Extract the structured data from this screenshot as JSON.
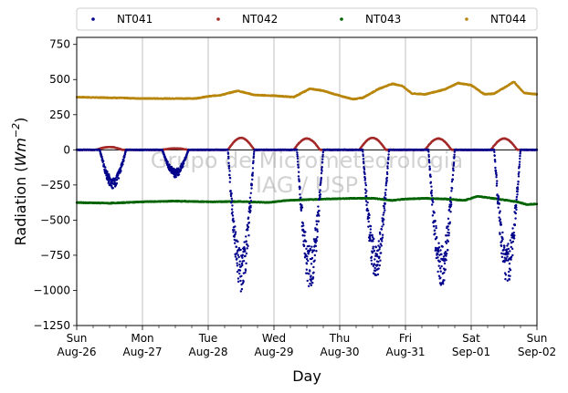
{
  "chart_data": {
    "type": "scatter",
    "title": "",
    "xlabel": "Day",
    "ylabel": "Radiation (Wm⁻²)",
    "ylabel_main": "Radiation (",
    "ylabel_unit": "Wm",
    "ylabel_exp": "−2",
    "ylabel_close": ")",
    "ylim": [
      -1250,
      800
    ],
    "xlim": [
      0,
      7
    ],
    "grid": "vertical",
    "legend_placement": "top",
    "y_ticks": [
      {
        "value": 750,
        "label": "750"
      },
      {
        "value": 500,
        "label": "500"
      },
      {
        "value": 250,
        "label": "250"
      },
      {
        "value": 0,
        "label": "0"
      },
      {
        "value": -250,
        "label": "−250"
      },
      {
        "value": -500,
        "label": "−500"
      },
      {
        "value": -750,
        "label": "−750"
      },
      {
        "value": -1000,
        "label": "−1000"
      },
      {
        "value": -1250,
        "label": "−1250"
      }
    ],
    "x_ticks": [
      {
        "value": 0,
        "line1": "Sun",
        "line2": "Aug-26"
      },
      {
        "value": 1,
        "line1": "Mon",
        "line2": "Aug-27"
      },
      {
        "value": 2,
        "line1": "Tue",
        "line2": "Aug-28"
      },
      {
        "value": 3,
        "line1": "Wed",
        "line2": "Aug-29"
      },
      {
        "value": 4,
        "line1": "Thu",
        "line2": "Aug-30"
      },
      {
        "value": 5,
        "line1": "Fri",
        "line2": "Aug-31"
      },
      {
        "value": 6,
        "line1": "Sat",
        "line2": "Sep-01"
      },
      {
        "value": 7,
        "line1": "Sun",
        "line2": "Sep-02"
      }
    ],
    "watermark": [
      "Grupo de Micrometeorologia",
      "IAG / USP"
    ],
    "series": [
      {
        "name": "NT041",
        "color": "#00008b",
        "daily_peak": [
          -240,
          -170,
          -880,
          -860,
          -800,
          -850,
          -835
        ],
        "daily_peak_day_fraction": [
          0.55,
          0.5,
          0.5,
          0.55,
          0.55,
          0.55,
          0.55
        ]
      },
      {
        "name": "NT042",
        "color": "#a52a2a",
        "daily_peak": [
          20,
          10,
          85,
          80,
          85,
          80,
          80
        ],
        "baseline": 0
      },
      {
        "name": "NT043",
        "color": "#006400",
        "points": [
          [
            0,
            -375
          ],
          [
            0.5,
            -380
          ],
          [
            1,
            -370
          ],
          [
            1.5,
            -365
          ],
          [
            2,
            -370
          ],
          [
            2.5,
            -368
          ],
          [
            2.9,
            -375
          ],
          [
            3.2,
            -360
          ],
          [
            3.5,
            -355
          ],
          [
            3.8,
            -350
          ],
          [
            4.2,
            -345
          ],
          [
            4.5,
            -345
          ],
          [
            4.8,
            -360
          ],
          [
            5.0,
            -350
          ],
          [
            5.3,
            -345
          ],
          [
            5.6,
            -350
          ],
          [
            5.9,
            -360
          ],
          [
            6.1,
            -330
          ],
          [
            6.4,
            -350
          ],
          [
            6.7,
            -370
          ],
          [
            6.85,
            -390
          ],
          [
            7,
            -385
          ]
        ]
      },
      {
        "name": "NT044",
        "color": "#b8860b",
        "points": [
          [
            0,
            375
          ],
          [
            0.3,
            372
          ],
          [
            0.6,
            370
          ],
          [
            1.0,
            365
          ],
          [
            1.4,
            365
          ],
          [
            1.8,
            365
          ],
          [
            2.0,
            380
          ],
          [
            2.2,
            390
          ],
          [
            2.45,
            420
          ],
          [
            2.7,
            390
          ],
          [
            3.0,
            385
          ],
          [
            3.3,
            375
          ],
          [
            3.55,
            435
          ],
          [
            3.75,
            420
          ],
          [
            4.0,
            385
          ],
          [
            4.2,
            360
          ],
          [
            4.35,
            370
          ],
          [
            4.6,
            435
          ],
          [
            4.8,
            470
          ],
          [
            4.95,
            455
          ],
          [
            5.1,
            400
          ],
          [
            5.3,
            395
          ],
          [
            5.6,
            430
          ],
          [
            5.8,
            475
          ],
          [
            6.0,
            460
          ],
          [
            6.2,
            395
          ],
          [
            6.35,
            400
          ],
          [
            6.55,
            455
          ],
          [
            6.65,
            485
          ],
          [
            6.8,
            405
          ],
          [
            7,
            395
          ]
        ]
      }
    ]
  }
}
